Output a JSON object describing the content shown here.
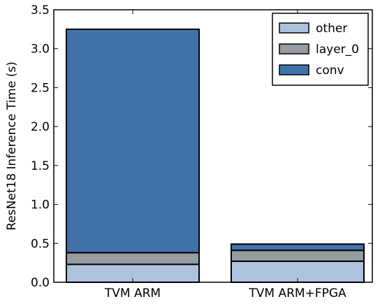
{
  "chart_data": {
    "type": "bar",
    "stacked": true,
    "title": "",
    "xlabel": "",
    "ylabel": "ResNet18 Inference Time (s)",
    "ylim": [
      0,
      3.5
    ],
    "yticks": [
      "0.0",
      "0.5",
      "1.0",
      "1.5",
      "2.0",
      "2.5",
      "3.0",
      "3.5"
    ],
    "categories": [
      "TVM ARM",
      "TVM ARM+FPGA"
    ],
    "series": [
      {
        "name": "other",
        "color": "#adc2de",
        "values": [
          0.23,
          0.27
        ]
      },
      {
        "name": "layer_0",
        "color": "#969c9f",
        "values": [
          0.15,
          0.14
        ]
      },
      {
        "name": "conv",
        "color": "#4272aa",
        "values": [
          2.87,
          0.08
        ]
      }
    ],
    "legend": {
      "placement": "top-right",
      "order": [
        "other",
        "layer_0",
        "conv"
      ]
    },
    "grid": false
  }
}
